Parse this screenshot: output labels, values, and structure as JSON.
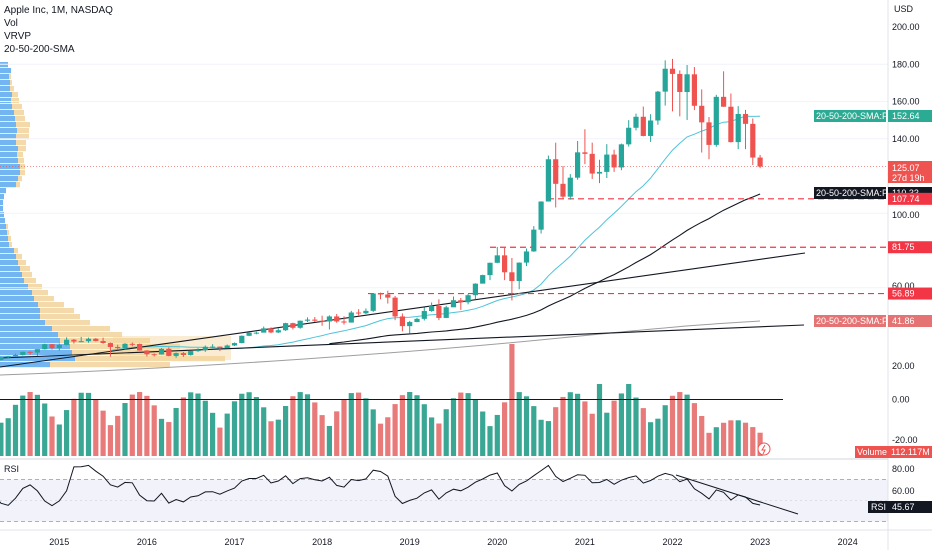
{
  "header": {
    "title": "Apple Inc, 1M, NASDAQ",
    "indicators": [
      "Vol",
      "VRVP",
      "20-50-200-SMA"
    ]
  },
  "colors": {
    "up": "#26a69a",
    "down": "#ef5350",
    "volume_up": "#2fa28f",
    "volume_down": "#e77373",
    "sma20": "#4fc3d9",
    "sma50": "#131722",
    "sma200": "#9e9e9e",
    "support": "#f23645",
    "vrvp_up": "#5aa8ee",
    "vrvp_down": "#f2d49b"
  },
  "price_axis": {
    "currency": "USD",
    "ticks": [
      "200.00",
      "180.00",
      "160.00",
      "140.00",
      "100.00",
      "60.00",
      "20.00",
      "0.00",
      "-20.00"
    ],
    "current_price": "125.07",
    "countdown": "27d 19h"
  },
  "time_axis": {
    "labels": [
      "2015",
      "2016",
      "2017",
      "2018",
      "2019",
      "2020",
      "2021",
      "2022",
      "2023",
      "2024"
    ]
  },
  "level_lines": [
    "107.74",
    "81.75",
    "56.89"
  ],
  "tags": {
    "sma_plot_1": {
      "label": "20-50-200-SMA:Plot",
      "value": "152.64"
    },
    "sma_plot_2": {
      "label": "20-50-200-SMA:Plot",
      "value": "110.33"
    },
    "sma_plot_3": {
      "label": "20-50-200-SMA:Plot",
      "value": "41.86"
    },
    "volume": {
      "label": "Volume",
      "value": "112.117M"
    }
  },
  "rsi": {
    "title": "RSI",
    "ticks": [
      "80.00",
      "60.00"
    ],
    "value": "45.67",
    "label": "RSI"
  },
  "chart_data": {
    "type": "candlestick",
    "symbol": "AAPL",
    "interval": "1M",
    "ylim": [
      -20,
      200
    ],
    "x_range": [
      "2014-01",
      "2024-06"
    ],
    "series": [
      {
        "data": [
          [
            "2014-01",
            19.5,
            20.0,
            17.6,
            18.7
          ],
          [
            "2014-02",
            18.7,
            19.6,
            17.9,
            19.0
          ],
          [
            "2014-03",
            19.0,
            19.9,
            18.7,
            19.2
          ],
          [
            "2014-04",
            19.2,
            21.3,
            18.6,
            21.2
          ],
          [
            "2014-05",
            21.2,
            23.0,
            21.0,
            22.6
          ],
          [
            "2014-06",
            22.6,
            23.4,
            22.0,
            23.2
          ],
          [
            "2014-07",
            23.2,
            24.6,
            23.0,
            23.9
          ],
          [
            "2014-08",
            23.9,
            25.7,
            23.6,
            25.6
          ],
          [
            "2014-09",
            25.6,
            25.9,
            24.0,
            25.2
          ],
          [
            "2014-10",
            25.2,
            27.0,
            23.3,
            27.0
          ],
          [
            "2014-11",
            27.0,
            29.9,
            26.8,
            29.7
          ],
          [
            "2014-12",
            29.7,
            29.8,
            26.8,
            27.6
          ],
          [
            "2015-01",
            27.6,
            30.0,
            26.2,
            29.3
          ],
          [
            "2015-02",
            29.3,
            33.4,
            29.0,
            32.1
          ],
          [
            "2015-03",
            32.1,
            32.5,
            30.0,
            31.1
          ],
          [
            "2015-04",
            31.1,
            33.6,
            30.8,
            31.3
          ],
          [
            "2015-05",
            31.3,
            33.2,
            30.5,
            32.6
          ],
          [
            "2015-06",
            32.6,
            33.0,
            31.2,
            31.4
          ],
          [
            "2015-07",
            31.4,
            33.2,
            29.9,
            30.3
          ],
          [
            "2015-08",
            30.3,
            30.6,
            23.0,
            28.2
          ],
          [
            "2015-09",
            28.2,
            29.4,
            26.8,
            27.6
          ],
          [
            "2015-10",
            27.6,
            30.3,
            26.8,
            29.9
          ],
          [
            "2015-11",
            29.9,
            30.6,
            28.6,
            29.8
          ],
          [
            "2015-12",
            29.8,
            30.0,
            26.2,
            26.3
          ],
          [
            "2016-01",
            26.3,
            26.5,
            23.1,
            24.3
          ],
          [
            "2016-02",
            24.3,
            24.7,
            23.1,
            24.2
          ],
          [
            "2016-03",
            24.2,
            27.6,
            24.1,
            27.2
          ],
          [
            "2016-04",
            27.2,
            28.0,
            23.2,
            23.4
          ],
          [
            "2016-05",
            23.4,
            25.2,
            22.4,
            24.9
          ],
          [
            "2016-06",
            24.9,
            25.5,
            22.9,
            23.9
          ],
          [
            "2016-07",
            23.9,
            26.1,
            23.6,
            26.0
          ],
          [
            "2016-08",
            26.0,
            27.6,
            25.6,
            26.5
          ],
          [
            "2016-09",
            26.5,
            29.0,
            25.6,
            28.3
          ],
          [
            "2016-10",
            28.3,
            29.7,
            27.6,
            28.4
          ],
          [
            "2016-11",
            28.4,
            28.4,
            26.0,
            27.6
          ],
          [
            "2016-12",
            27.6,
            29.5,
            27.6,
            29.0
          ],
          [
            "2017-01",
            29.0,
            30.6,
            28.7,
            30.3
          ],
          [
            "2017-02",
            30.3,
            34.4,
            30.2,
            34.2
          ],
          [
            "2017-03",
            34.2,
            36.1,
            34.0,
            35.9
          ],
          [
            "2017-04",
            35.9,
            36.4,
            35.0,
            35.9
          ],
          [
            "2017-05",
            35.9,
            39.2,
            36.0,
            38.2
          ],
          [
            "2017-06",
            38.2,
            38.8,
            35.6,
            36.0
          ],
          [
            "2017-07",
            36.0,
            38.2,
            35.7,
            37.2
          ],
          [
            "2017-08",
            37.2,
            41.2,
            36.8,
            41.0
          ],
          [
            "2017-09",
            41.0,
            41.2,
            37.6,
            38.5
          ],
          [
            "2017-10",
            38.5,
            42.4,
            38.0,
            42.3
          ],
          [
            "2017-11",
            42.3,
            44.1,
            41.6,
            42.9
          ],
          [
            "2017-12",
            42.9,
            44.3,
            41.6,
            42.3
          ],
          [
            "2018-01",
            42.3,
            45.0,
            39.6,
            41.9
          ],
          [
            "2018-02",
            41.9,
            45.2,
            37.6,
            44.6
          ],
          [
            "2018-03",
            44.6,
            45.9,
            41.2,
            41.9
          ],
          [
            "2018-04",
            41.9,
            44.7,
            40.2,
            41.3
          ],
          [
            "2018-05",
            41.3,
            47.6,
            41.3,
            46.7
          ],
          [
            "2018-06",
            46.7,
            48.5,
            45.2,
            46.3
          ],
          [
            "2018-07",
            46.3,
            48.9,
            45.9,
            47.6
          ],
          [
            "2018-08",
            47.6,
            57.2,
            47.0,
            56.9
          ],
          [
            "2018-09",
            56.9,
            57.4,
            53.8,
            56.4
          ],
          [
            "2018-10",
            56.4,
            58.4,
            51.5,
            54.7
          ],
          [
            "2018-11",
            54.7,
            55.6,
            42.6,
            44.6
          ],
          [
            "2018-12",
            44.6,
            46.2,
            36.6,
            39.4
          ],
          [
            "2019-01",
            39.4,
            42.2,
            35.5,
            41.6
          ],
          [
            "2019-02",
            41.6,
            43.9,
            41.5,
            43.3
          ],
          [
            "2019-03",
            43.3,
            49.4,
            42.4,
            47.5
          ],
          [
            "2019-04",
            47.5,
            52.1,
            47.1,
            50.2
          ],
          [
            "2019-05",
            50.2,
            53.8,
            42.6,
            43.8
          ],
          [
            "2019-06",
            43.8,
            50.3,
            43.7,
            49.5
          ],
          [
            "2019-07",
            49.5,
            55.3,
            49.7,
            53.3
          ],
          [
            "2019-08",
            53.3,
            54.5,
            48.1,
            52.2
          ],
          [
            "2019-09",
            52.2,
            56.6,
            51.1,
            56.0
          ],
          [
            "2019-10",
            56.0,
            62.4,
            53.8,
            62.2
          ],
          [
            "2019-11",
            62.2,
            67.0,
            62.3,
            66.8
          ],
          [
            "2019-12",
            66.8,
            73.5,
            64.1,
            73.4
          ],
          [
            "2020-01",
            73.4,
            81.9,
            73.2,
            77.4
          ],
          [
            "2020-02",
            77.4,
            81.8,
            64.1,
            68.3
          ],
          [
            "2020-03",
            68.3,
            76.0,
            53.2,
            63.6
          ],
          [
            "2020-04",
            63.6,
            73.6,
            59.2,
            73.5
          ],
          [
            "2020-05",
            73.5,
            81.1,
            71.6,
            79.5
          ],
          [
            "2020-06",
            79.5,
            93.1,
            79.3,
            91.2
          ],
          [
            "2020-07",
            91.2,
            106.4,
            89.1,
            106.3
          ],
          [
            "2020-08",
            106.3,
            131.0,
            107.9,
            129.0
          ],
          [
            "2020-09",
            129.0,
            137.9,
            103.1,
            115.8
          ],
          [
            "2020-10",
            115.8,
            125.4,
            107.7,
            108.9
          ],
          [
            "2020-11",
            108.9,
            121.0,
            107.3,
            119.1
          ],
          [
            "2020-12",
            119.1,
            138.8,
            118.0,
            132.7
          ],
          [
            "2021-01",
            132.7,
            145.1,
            126.4,
            131.9
          ],
          [
            "2021-02",
            131.9,
            137.9,
            118.4,
            121.3
          ],
          [
            "2021-03",
            121.3,
            128.7,
            116.2,
            122.2
          ],
          [
            "2021-04",
            122.2,
            137.1,
            118.9,
            131.5
          ],
          [
            "2021-05",
            131.5,
            134.1,
            122.2,
            124.6
          ],
          [
            "2021-06",
            124.6,
            137.4,
            123.1,
            137.0
          ],
          [
            "2021-07",
            137.0,
            150.0,
            135.8,
            145.9
          ],
          [
            "2021-08",
            145.9,
            153.5,
            144.5,
            151.8
          ],
          [
            "2021-09",
            151.8,
            157.3,
            141.3,
            141.5
          ],
          [
            "2021-10",
            141.5,
            153.2,
            138.3,
            149.8
          ],
          [
            "2021-11",
            149.8,
            165.7,
            147.5,
            165.3
          ],
          [
            "2021-12",
            165.3,
            182.1,
            157.8,
            177.6
          ],
          [
            "2022-01",
            177.6,
            182.9,
            154.7,
            174.8
          ],
          [
            "2022-02",
            174.8,
            176.7,
            152.0,
            165.1
          ],
          [
            "2022-03",
            165.1,
            179.6,
            150.1,
            174.6
          ],
          [
            "2022-04",
            174.6,
            178.5,
            155.4,
            157.7
          ],
          [
            "2022-05",
            157.7,
            166.5,
            132.6,
            148.8
          ],
          [
            "2022-06",
            148.8,
            151.7,
            129.0,
            136.7
          ],
          [
            "2022-07",
            136.7,
            163.6,
            135.7,
            162.5
          ],
          [
            "2022-08",
            162.5,
            176.2,
            157.1,
            157.2
          ],
          [
            "2022-09",
            157.2,
            164.3,
            138.0,
            138.2
          ],
          [
            "2022-10",
            138.2,
            157.5,
            134.4,
            153.3
          ],
          [
            "2022-11",
            153.3,
            155.5,
            134.4,
            148.0
          ],
          [
            "2022-12",
            148.0,
            150.9,
            125.9,
            129.9
          ],
          [
            "2023-01",
            129.9,
            131.3,
            124.2,
            125.07
          ]
        ]
      }
    ]
  }
}
